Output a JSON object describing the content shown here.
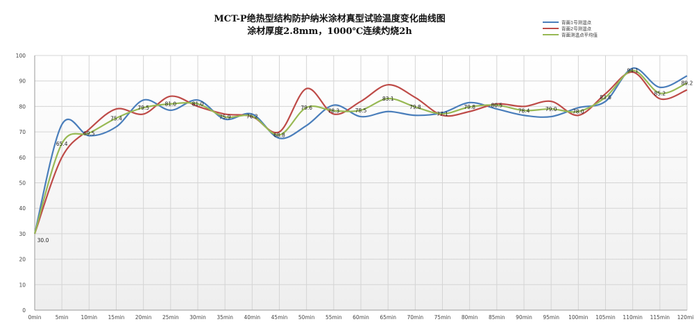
{
  "chart_data": {
    "type": "line",
    "title": "MCT-P绝热型结构防护纳米涂材真型试验温度变化曲线图",
    "subtitle": "涂材厚度2.8mm，1000℃连续灼烧2h",
    "xlabel": "",
    "ylabel": "",
    "categories": [
      "0min",
      "5min",
      "10min",
      "15min",
      "20min",
      "25min",
      "30min",
      "35min",
      "40min",
      "45min",
      "50min",
      "55min",
      "60min",
      "65min",
      "70min",
      "75min",
      "80min",
      "85min",
      "90min",
      "95min",
      "100min",
      "105min",
      "110min",
      "115min",
      "120min"
    ],
    "ylim": [
      0,
      100
    ],
    "yticks": [
      0,
      10,
      20,
      30,
      40,
      50,
      60,
      70,
      80,
      90,
      100
    ],
    "grid": true,
    "legend_position": "top-right",
    "series": [
      {
        "name": "背面1号测温点",
        "color": "#4a7ebb",
        "smooth": true,
        "values": [
          30,
          72.9,
          68.5,
          72,
          82.5,
          78.5,
          82.5,
          75,
          77,
          67.5,
          72.5,
          80.5,
          76,
          78,
          76.5,
          77.5,
          81.5,
          79,
          76.5,
          76,
          79.5,
          82,
          95,
          87.5,
          92
        ]
      },
      {
        "name": "背面2号测温点",
        "color": "#be4b48",
        "smooth": true,
        "values": [
          30,
          60,
          71,
          79,
          77,
          84,
          80,
          77,
          76,
          70,
          87,
          77,
          82,
          88.5,
          83.5,
          76.5,
          78,
          81,
          80,
          82,
          76.5,
          85,
          93.5,
          83,
          86.5
        ]
      },
      {
        "name": "背面测温点平均值",
        "color": "#98b954",
        "smooth": true,
        "values": [
          30.0,
          65.4,
          69.5,
          75.4,
          79.5,
          81.0,
          81.0,
          75.9,
          76.2,
          68.8,
          79.6,
          78.3,
          78.5,
          83.1,
          79.8,
          77.1,
          79.8,
          80.5,
          78.4,
          79.0,
          78.0,
          83.6,
          94.1,
          85.2,
          89.2
        ],
        "data_labels": [
          "30.0",
          "65.4",
          "69.5",
          "75.4",
          "79.5",
          "81.0",
          "81.0",
          "75.9",
          "76.2",
          "68.8",
          "79.6",
          "78.3",
          "78.5",
          "83.1",
          "79.8",
          "77.1",
          "79.8",
          "80.5",
          "78.4",
          "79.0",
          "78.0",
          "83.6",
          "94.1",
          "85.2",
          "89.2"
        ]
      }
    ]
  }
}
